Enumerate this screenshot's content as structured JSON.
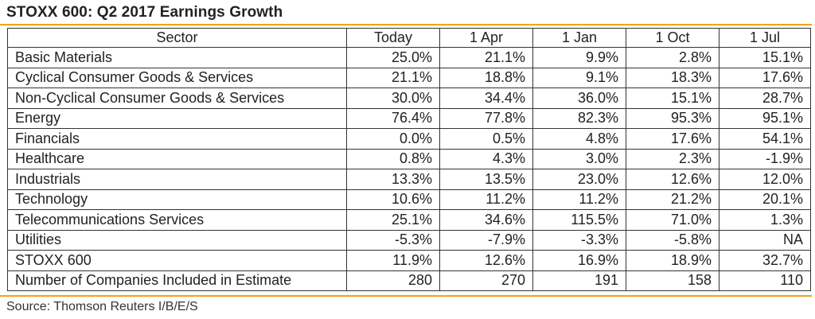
{
  "title": "STOXX 600: Q2 2017 Earnings Growth",
  "accent_color": "#f0a418",
  "table": {
    "headers": [
      "Sector",
      "Today",
      "1 Apr",
      "1 Jan",
      "1 Oct",
      "1 Jul"
    ],
    "rows": [
      [
        "Basic Materials",
        "25.0%",
        "21.1%",
        "9.9%",
        "2.8%",
        "15.1%"
      ],
      [
        "Cyclical Consumer Goods & Services",
        "21.1%",
        "18.8%",
        "9.1%",
        "18.3%",
        "17.6%"
      ],
      [
        "Non-Cyclical Consumer Goods & Services",
        "30.0%",
        "34.4%",
        "36.0%",
        "15.1%",
        "28.7%"
      ],
      [
        "Energy",
        "76.4%",
        "77.8%",
        "82.3%",
        "95.3%",
        "95.1%"
      ],
      [
        "Financials",
        "0.0%",
        "0.5%",
        "4.8%",
        "17.6%",
        "54.1%"
      ],
      [
        "Healthcare",
        "0.8%",
        "4.3%",
        "3.0%",
        "2.3%",
        "-1.9%"
      ],
      [
        "Industrials",
        "13.3%",
        "13.5%",
        "23.0%",
        "12.6%",
        "12.0%"
      ],
      [
        "Technology",
        "10.6%",
        "11.2%",
        "11.2%",
        "21.2%",
        "20.1%"
      ],
      [
        "Telecommunications Services",
        "25.1%",
        "34.6%",
        "115.5%",
        "71.0%",
        "1.3%"
      ],
      [
        "Utilities",
        "-5.3%",
        "-7.9%",
        "-3.3%",
        "-5.8%",
        "NA"
      ],
      [
        "STOXX 600",
        "11.9%",
        "12.6%",
        "16.9%",
        "18.9%",
        "32.7%"
      ],
      [
        "Number of Companies Included in Estimate",
        "280",
        "270",
        "191",
        "158",
        "110"
      ]
    ]
  },
  "source": "Source: Thomson Reuters I/B/E/S"
}
